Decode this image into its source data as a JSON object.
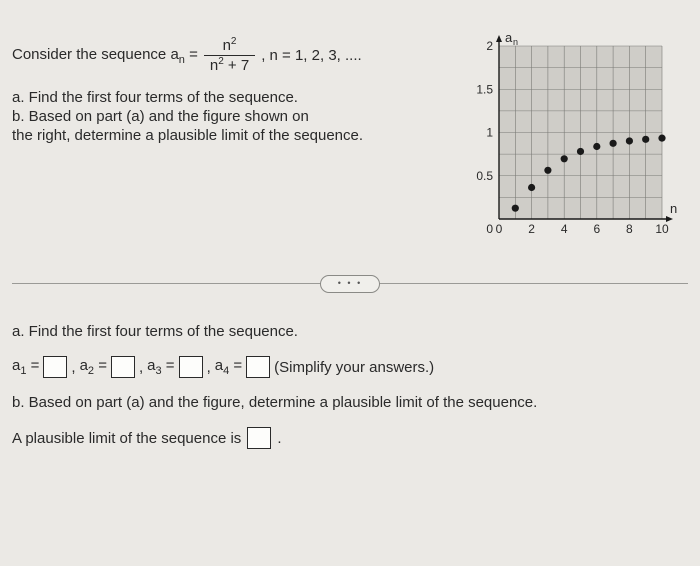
{
  "problem": {
    "intro_prefix": "Consider the sequence a",
    "intro_sub": "n",
    "equals": " = ",
    "frac_num_base": "n",
    "frac_num_exp": "2",
    "frac_den_left_base": "n",
    "frac_den_left_exp": "2",
    "frac_den_right": " + 7",
    "domain": ", n = 1, 2, 3, ....",
    "part_a": "a.  Find the first four terms of the sequence.",
    "part_b_l1": "b.  Based on part (a) and the figure shown on",
    "part_b_l2": "the right, determine a plausible limit of the sequence."
  },
  "chart": {
    "y_axis_label": "a",
    "y_axis_label_sub": "n",
    "x_axis_label": "n",
    "x_min": 0,
    "x_max": 10,
    "y_min": 0,
    "y_max": 2,
    "x_ticks": [
      0,
      2,
      4,
      6,
      8,
      10
    ],
    "y_ticks": [
      0,
      0.5,
      1,
      1.5,
      2
    ],
    "x_tick_labels": [
      "0",
      "2",
      "4",
      "6",
      "8",
      "10"
    ],
    "y_tick_labels": [
      "0",
      "0.5",
      "1",
      "1.5",
      "2"
    ],
    "grid_color": "#7a7a76",
    "axis_color": "#1a1a1a",
    "bg_color": "#cfcdc8",
    "point_color": "#1a1a1a",
    "point_radius": 3.6,
    "points": [
      {
        "x": 1,
        "y": 0.125
      },
      {
        "x": 2,
        "y": 0.364
      },
      {
        "x": 3,
        "y": 0.563
      },
      {
        "x": 4,
        "y": 0.696
      },
      {
        "x": 5,
        "y": 0.781
      },
      {
        "x": 6,
        "y": 0.838
      },
      {
        "x": 7,
        "y": 0.875
      },
      {
        "x": 8,
        "y": 0.902
      },
      {
        "x": 9,
        "y": 0.921
      },
      {
        "x": 10,
        "y": 0.935
      }
    ]
  },
  "dots": "• • •",
  "answers": {
    "heading": "a.  Find the first four terms of the sequence.",
    "a1_lhs": "a",
    "a1_sub": "1",
    "eq": " = ",
    "a2_lhs": "a",
    "a2_sub": "2",
    "a3_lhs": "a",
    "a3_sub": "3",
    "a4_lhs": "a",
    "a4_sub": "4",
    "comma": ", ",
    "simplify": "  (Simplify your answers.)",
    "part_b": "b.  Based on part (a) and the figure, determine a plausible limit of the sequence.",
    "lim_text": "A plausible limit of the sequence is ",
    "period": "."
  }
}
